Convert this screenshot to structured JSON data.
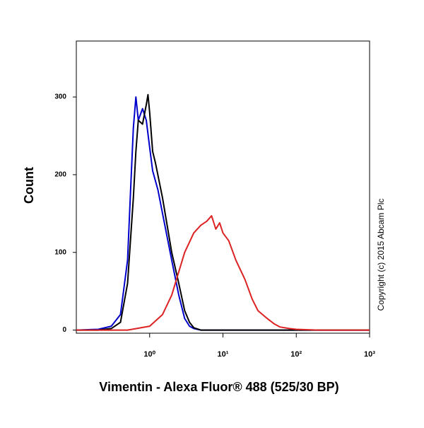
{
  "chart_data": {
    "type": "line",
    "xlabel": "Vimentin - Alexa Fluor® 488 (525/30 BP)",
    "ylabel": "Count",
    "annotation": "Copyright (c) 2015 Abcam Plc",
    "xscale": "log",
    "xlim": [
      0.1,
      1000
    ],
    "ylim": [
      -4,
      372
    ],
    "xticks": [
      {
        "value": 1,
        "label": "10⁰"
      },
      {
        "value": 10,
        "label": "10¹"
      },
      {
        "value": 100,
        "label": "10²"
      },
      {
        "value": 1000,
        "label": "10³"
      }
    ],
    "yticks": [
      0,
      100,
      200,
      300
    ],
    "series": [
      {
        "color": "#0000cc",
        "x": [
          0.1,
          0.2,
          0.3,
          0.4,
          0.5,
          0.55,
          0.6,
          0.65,
          0.7,
          0.8,
          0.9,
          1,
          1.1,
          1.3,
          1.5,
          2,
          2.5,
          3,
          3.5,
          4,
          5,
          10,
          100,
          1000
        ],
        "values": [
          0,
          1,
          5,
          20,
          90,
          180,
          260,
          300,
          270,
          285,
          270,
          235,
          205,
          180,
          150,
          90,
          45,
          15,
          5,
          2,
          0,
          0,
          0,
          0
        ]
      },
      {
        "color": "#000000",
        "x": [
          0.1,
          0.2,
          0.3,
          0.4,
          0.5,
          0.6,
          0.65,
          0.7,
          0.8,
          0.9,
          0.95,
          1,
          1.1,
          1.2,
          1.5,
          2,
          2.5,
          3,
          3.5,
          4,
          5,
          10,
          100,
          1000
        ],
        "values": [
          0,
          0,
          2,
          10,
          60,
          170,
          230,
          270,
          265,
          290,
          303,
          280,
          230,
          215,
          170,
          100,
          60,
          25,
          10,
          3,
          0,
          0,
          0,
          0
        ]
      },
      {
        "color": "#dd2222",
        "x": [
          0.1,
          0.5,
          1,
          1.5,
          2,
          3,
          4,
          5,
          6,
          7,
          8,
          9,
          10,
          12,
          15,
          20,
          25,
          30,
          40,
          50,
          60,
          80,
          100,
          200,
          1000
        ],
        "values": [
          0,
          0,
          5,
          20,
          45,
          100,
          125,
          135,
          140,
          147,
          130,
          138,
          125,
          115,
          90,
          65,
          40,
          25,
          15,
          8,
          4,
          2,
          1,
          0,
          0
        ]
      }
    ]
  }
}
